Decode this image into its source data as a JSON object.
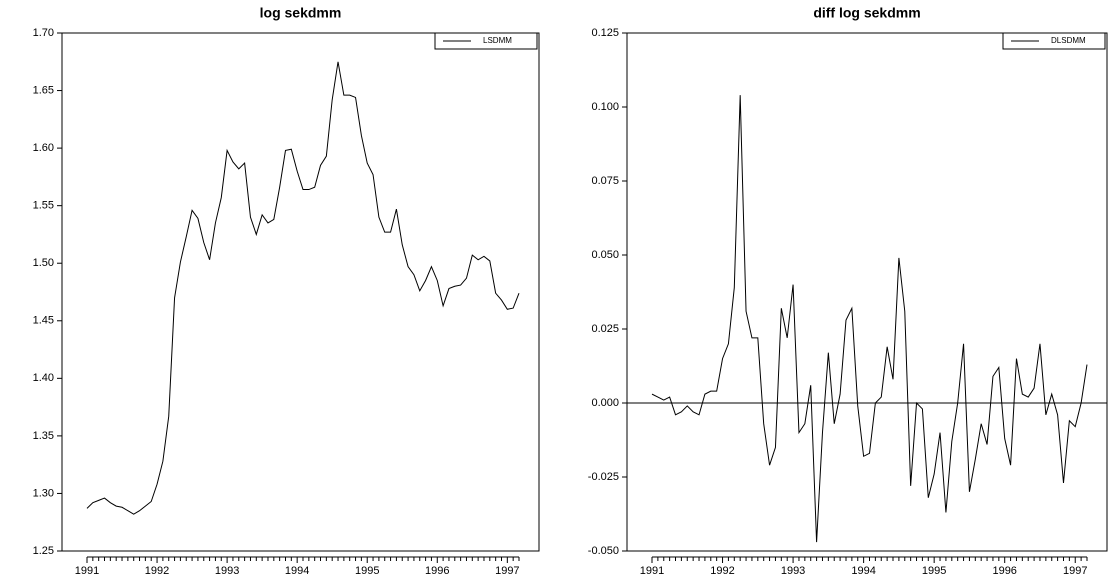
{
  "chart_data": [
    {
      "type": "line",
      "title": "log sekdmm",
      "categories": [
        "1991",
        null,
        null,
        null,
        null,
        null,
        null,
        null,
        null,
        null,
        null,
        null,
        "1992",
        null,
        null,
        null,
        null,
        null,
        null,
        null,
        null,
        null,
        null,
        null,
        "1993",
        null,
        null,
        null,
        null,
        null,
        null,
        null,
        null,
        null,
        null,
        null,
        "1994",
        null,
        null,
        null,
        null,
        null,
        null,
        null,
        null,
        null,
        null,
        null,
        "1995",
        null,
        null,
        null,
        null,
        null,
        null,
        null,
        null,
        null,
        null,
        null,
        "1996",
        null,
        null,
        null,
        null,
        null,
        null,
        null,
        null,
        null,
        null,
        null,
        "1997",
        null,
        null
      ],
      "series": [
        {
          "name": "LSDMM",
          "color": "#000000",
          "values": [
            1.287,
            1.292,
            1.294,
            1.296,
            1.292,
            1.289,
            1.288,
            1.285,
            1.282,
            1.285,
            1.289,
            1.293,
            1.308,
            1.328,
            1.367,
            1.47,
            1.501,
            1.523,
            1.546,
            1.539,
            1.518,
            1.503,
            1.535,
            1.557,
            1.598,
            1.588,
            1.582,
            1.587,
            1.54,
            1.525,
            1.542,
            1.535,
            1.538,
            1.566,
            1.598,
            1.599,
            1.58,
            1.564,
            1.564,
            1.566,
            1.585,
            1.593,
            1.642,
            1.675,
            1.646,
            1.646,
            1.644,
            1.611,
            1.587,
            1.577,
            1.54,
            1.527,
            1.527,
            1.547,
            1.516,
            1.497,
            1.49,
            1.476,
            1.485,
            1.497,
            1.485,
            1.463,
            1.478,
            1.48,
            1.481,
            1.487,
            1.507,
            1.503,
            1.506,
            1.502,
            1.474,
            1.468,
            1.46,
            1.461,
            1.474
          ]
        }
      ],
      "ylim": [
        1.25,
        1.7
      ],
      "yticks": [
        {
          "value": 1.25,
          "label": "1.25"
        },
        {
          "value": 1.3,
          "label": "1.30"
        },
        {
          "value": 1.35,
          "label": "1.35"
        },
        {
          "value": 1.4,
          "label": "1.40"
        },
        {
          "value": 1.45,
          "label": "1.45"
        },
        {
          "value": 1.5,
          "label": "1.50"
        },
        {
          "value": 1.55,
          "label": "1.55"
        },
        {
          "value": 1.6,
          "label": "1.60"
        },
        {
          "value": 1.65,
          "label": "1.65"
        },
        {
          "value": 1.7,
          "label": "1.70"
        }
      ],
      "legend": "upper right"
    },
    {
      "type": "line",
      "title": "diff log sekdmm",
      "categories": [
        "1991",
        null,
        null,
        null,
        null,
        null,
        null,
        null,
        null,
        null,
        null,
        null,
        "1992",
        null,
        null,
        null,
        null,
        null,
        null,
        null,
        null,
        null,
        null,
        null,
        "1993",
        null,
        null,
        null,
        null,
        null,
        null,
        null,
        null,
        null,
        null,
        null,
        "1994",
        null,
        null,
        null,
        null,
        null,
        null,
        null,
        null,
        null,
        null,
        null,
        "1995",
        null,
        null,
        null,
        null,
        null,
        null,
        null,
        null,
        null,
        null,
        null,
        "1996",
        null,
        null,
        null,
        null,
        null,
        null,
        null,
        null,
        null,
        null,
        null,
        "1997",
        null,
        null
      ],
      "series": [
        {
          "name": "DLSDMM",
          "color": "#000000",
          "values": [
            0.003,
            0.002,
            0.001,
            0.002,
            -0.004,
            -0.003,
            -0.001,
            -0.003,
            -0.004,
            0.003,
            0.004,
            0.004,
            0.015,
            0.02,
            0.039,
            0.104,
            0.031,
            0.022,
            0.022,
            -0.007,
            -0.021,
            -0.015,
            0.032,
            0.022,
            0.04,
            -0.01,
            -0.007,
            0.006,
            -0.047,
            -0.01,
            0.017,
            -0.007,
            0.003,
            0.028,
            0.032,
            -0.001,
            -0.018,
            -0.017,
            0.0,
            0.002,
            0.019,
            0.008,
            0.049,
            0.031,
            -0.028,
            0.0,
            -0.002,
            -0.032,
            -0.024,
            -0.01,
            -0.037,
            -0.013,
            0.0,
            0.02,
            -0.03,
            -0.019,
            -0.007,
            -0.014,
            0.009,
            0.012,
            -0.012,
            -0.021,
            0.015,
            0.003,
            0.002,
            0.005,
            0.02,
            -0.004,
            0.003,
            -0.004,
            -0.027,
            -0.006,
            -0.008,
            0.0,
            0.013
          ]
        }
      ],
      "ylim": [
        -0.05,
        0.125
      ],
      "yticks": [
        {
          "value": -0.05,
          "label": "-0.050"
        },
        {
          "value": -0.025,
          "label": "-0.025"
        },
        {
          "value": 0,
          "label": "0.000"
        },
        {
          "value": 0.025,
          "label": "0.025"
        },
        {
          "value": 0.05,
          "label": "0.050"
        },
        {
          "value": 0.075,
          "label": "0.075"
        },
        {
          "value": 0.1,
          "label": "0.100"
        },
        {
          "value": 0.125,
          "label": "0.125"
        }
      ],
      "reference_line": 0,
      "legend": "upper right"
    }
  ]
}
